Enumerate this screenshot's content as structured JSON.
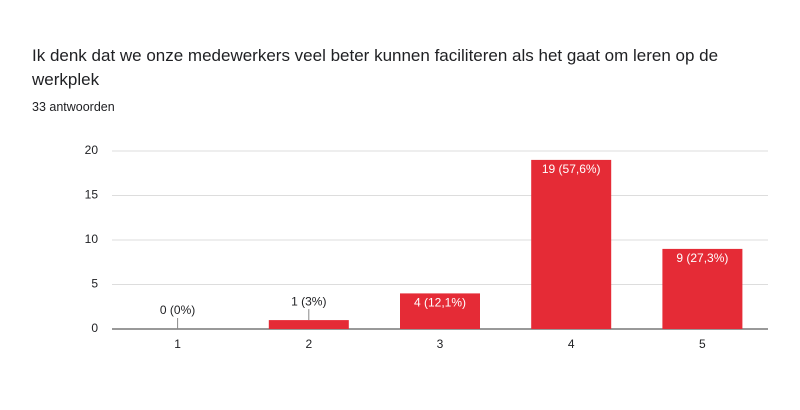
{
  "chart_data": {
    "type": "bar",
    "title": "Ik denk dat we onze medewerkers veel beter kunnen faciliteren als het gaat om leren op de werkplek",
    "subtitle": "33 antwoorden",
    "categories": [
      "1",
      "2",
      "3",
      "4",
      "5"
    ],
    "values": [
      0,
      1,
      4,
      19,
      9
    ],
    "value_labels": [
      "0 (0%)",
      "1 (3%)",
      "4 (12,1%)",
      "19 (57,6%)",
      "9 (27,3%)"
    ],
    "color": "#e52b36",
    "ylim": [
      0,
      20
    ],
    "yticks": [
      0,
      5,
      10,
      15,
      20
    ],
    "grid": true
  }
}
